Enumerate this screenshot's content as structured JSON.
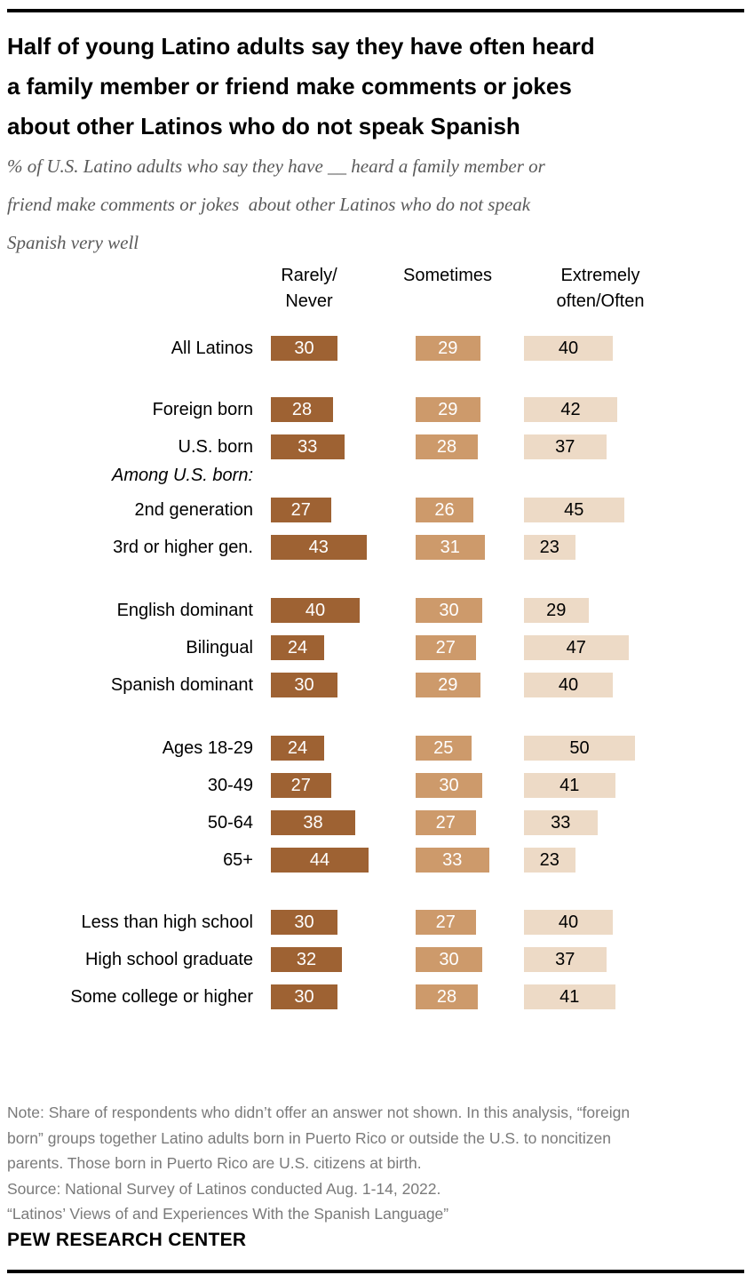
{
  "header": {
    "title": "Half of young Latino adults say they have often heard\na family member or friend make comments or jokes\nabout other Latinos who do not speak Spanish",
    "subtitle": "% of U.S. Latino adults who say they have __ heard a family member or\nfriend make comments or jokes  about other Latinos who do not speak\nSpanish very well"
  },
  "chart_data": {
    "type": "bar",
    "unit": "%",
    "columns": [
      {
        "id": "rarely-never",
        "label": "Rarely/\nNever",
        "color": "#9E6233",
        "value_text_color": "#FFFFFF"
      },
      {
        "id": "sometimes",
        "label": "Sometimes",
        "color": "#CD9A6B",
        "value_text_color": "#FFFFFF"
      },
      {
        "id": "extremely-often-often",
        "label": "Extremely\noften/Often",
        "color": "#EDDAC6",
        "value_text_color": "#000000"
      }
    ],
    "groups": [
      {
        "rows": [
          {
            "label": "All Latinos",
            "values": [
              30,
              29,
              40
            ]
          }
        ]
      },
      {
        "rows": [
          {
            "label": "Foreign born",
            "values": [
              28,
              29,
              42
            ]
          },
          {
            "label": "U.S. born",
            "values": [
              33,
              28,
              37
            ]
          }
        ]
      },
      {
        "section_label": "Among U.S. born:",
        "rows": [
          {
            "label": "2nd generation",
            "values": [
              27,
              26,
              45
            ]
          },
          {
            "label": "3rd or higher gen.",
            "values": [
              43,
              31,
              23
            ]
          }
        ]
      },
      {
        "rows": [
          {
            "label": "English dominant",
            "values": [
              40,
              30,
              29
            ]
          },
          {
            "label": "Bilingual",
            "values": [
              24,
              27,
              47
            ]
          },
          {
            "label": "Spanish dominant",
            "values": [
              30,
              29,
              40
            ]
          }
        ]
      },
      {
        "rows": [
          {
            "label": "Ages 18-29",
            "values": [
              24,
              25,
              50
            ]
          },
          {
            "label": "30-49",
            "values": [
              27,
              30,
              41
            ]
          },
          {
            "label": "50-64",
            "values": [
              38,
              27,
              33
            ]
          },
          {
            "label": "65+",
            "values": [
              44,
              33,
              23
            ]
          }
        ]
      },
      {
        "rows": [
          {
            "label": "Less than high school",
            "values": [
              30,
              27,
              40
            ]
          },
          {
            "label": "High school graduate",
            "values": [
              32,
              30,
              37
            ]
          },
          {
            "label": "Some college or higher",
            "values": [
              30,
              28,
              41
            ]
          }
        ]
      }
    ]
  },
  "footer": {
    "note": "Note: Share of respondents who didn’t offer an answer not shown. In this analysis, “foreign\nborn” groups together Latino adults born in Puerto Rico or outside the U.S. to noncitizen\nparents. Those born in Puerto Rico are U.S. citizens at birth.",
    "source": "Source: National Survey of Latinos conducted Aug. 1-14, 2022.",
    "report": "“Latinos’ Views of and Experiences With the Spanish Language”",
    "brand": "PEW RESEARCH CENTER"
  }
}
